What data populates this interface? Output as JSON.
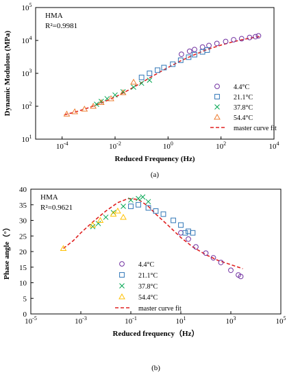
{
  "charts": [
    {
      "caption": "(a)",
      "chart_data": {
        "type": "scatter",
        "scale": "log-log",
        "xlabel": "Reduced Frequency (Hz)",
        "ylabel": "Dynamic Modulous (MPa)",
        "xlim": [
          1e-05,
          10000
        ],
        "ylim": [
          10,
          100000
        ],
        "x_ticks": [
          0.0001,
          0.01,
          1,
          100,
          10000
        ],
        "y_ticks": [
          10,
          100,
          1000,
          10000,
          100000
        ],
        "annotations": [
          "HMA",
          "R²=0.9981"
        ],
        "legend_position": "bottom-right",
        "series": [
          {
            "name": "4.4°C",
            "marker": "circle",
            "color": "#7030A0",
            "x": [
              3.2,
              6.5,
              10,
              20,
              35,
              70,
              150,
              300,
              600,
              1200,
              2000,
              2600
            ],
            "y": [
              3800,
              4700,
              5300,
              6300,
              7000,
              8100,
              9300,
              10500,
              11300,
              12300,
              13000,
              13800
            ]
          },
          {
            "name": "21.1°C",
            "marker": "square",
            "color": "#2E75B6",
            "x": [
              0.1,
              0.2,
              0.4,
              0.7,
              1.5,
              3,
              6,
              10,
              20,
              30
            ],
            "y": [
              750,
              1000,
              1250,
              1500,
              1900,
              2500,
              3100,
              3700,
              4500,
              5100
            ]
          },
          {
            "name": "37.8°C",
            "marker": "cross",
            "color": "#00A550",
            "x": [
              0.002,
              0.003,
              0.005,
              0.01,
              0.02,
              0.05,
              0.1,
              0.2
            ],
            "y": [
              115,
              140,
              170,
              220,
              275,
              380,
              500,
              620
            ]
          },
          {
            "name": "54.4°C",
            "marker": "triangle",
            "color": "#ED7D31",
            "x": [
              0.00015,
              0.0003,
              0.0007,
              0.0015,
              0.003,
              0.007,
              0.02,
              0.05
            ],
            "y": [
              58,
              68,
              82,
              100,
              130,
              170,
              260,
              540
            ]
          }
        ],
        "fit": {
          "name": "master curve fit",
          "color": "#E02020",
          "x": [
            0.00012,
            0.0003,
            0.001,
            0.003,
            0.01,
            0.03,
            0.1,
            0.3,
            1,
            3,
            10,
            30,
            100,
            300,
            1000,
            3000
          ],
          "y": [
            55,
            66,
            90,
            125,
            190,
            300,
            520,
            880,
            1500,
            2400,
            3700,
            5300,
            7200,
            9200,
            11400,
            13300
          ]
        }
      }
    },
    {
      "caption": "(b)",
      "chart_data": {
        "type": "scatter",
        "scale": "semilog-x",
        "xlabel": "Reduced frequency（Hz）",
        "ylabel": "Phase angle（°）",
        "xlim": [
          1e-05,
          100000
        ],
        "ylim": [
          0,
          40
        ],
        "x_ticks": [
          1e-05,
          0.001,
          0.1,
          10,
          1000,
          100000
        ],
        "y_ticks": [
          0,
          5,
          10,
          15,
          20,
          25,
          30,
          35,
          40
        ],
        "annotations": [
          "HMA",
          "R²=0.9621"
        ],
        "legend_position": "bottom-center",
        "series": [
          {
            "name": "4.4°C",
            "marker": "circle",
            "color": "#7030A0",
            "x": [
              10,
              20,
              40,
              100,
              200,
              400,
              1000,
              2000,
              2500
            ],
            "y": [
              26,
              24,
              21.5,
              19.5,
              18,
              16.5,
              14,
              12.5,
              12
            ]
          },
          {
            "name": "21.1°C",
            "marker": "square",
            "color": "#2E75B6",
            "x": [
              0.1,
              0.2,
              0.5,
              1,
              2,
              5,
              10,
              15,
              20,
              30
            ],
            "y": [
              34.5,
              35,
              34,
              33,
              32,
              30,
              28.5,
              26,
              26.5,
              26
            ]
          },
          {
            "name": "37.8°C",
            "marker": "cross",
            "color": "#00A550",
            "x": [
              0.003,
              0.005,
              0.01,
              0.02,
              0.05,
              0.1,
              0.2,
              0.3,
              0.5
            ],
            "y": [
              28,
              29,
              31,
              32.5,
              34.5,
              36.5,
              37,
              37.5,
              36
            ]
          },
          {
            "name": "54.4°C",
            "marker": "triangle",
            "color": "#FFC000",
            "x": [
              0.0002,
              0.003,
              0.006,
              0.02,
              0.03,
              0.05
            ],
            "y": [
              21,
              28.5,
              30,
              32,
              33,
              31
            ]
          }
        ],
        "fit": {
          "name": "master curve fit",
          "color": "#E02020",
          "x": [
            0.0002,
            0.0005,
            0.001,
            0.003,
            0.01,
            0.03,
            0.08,
            0.2,
            0.5,
            1,
            3,
            10,
            30,
            100,
            300,
            1000,
            3000
          ],
          "y": [
            21,
            23.5,
            26,
            29.5,
            33,
            35.7,
            37,
            36.7,
            34.5,
            32,
            28.5,
            24.5,
            21.5,
            19,
            17.2,
            15.8,
            14.5
          ]
        }
      }
    }
  ],
  "colors": {
    "axis": "#000000",
    "fit_line": "#E02020"
  }
}
